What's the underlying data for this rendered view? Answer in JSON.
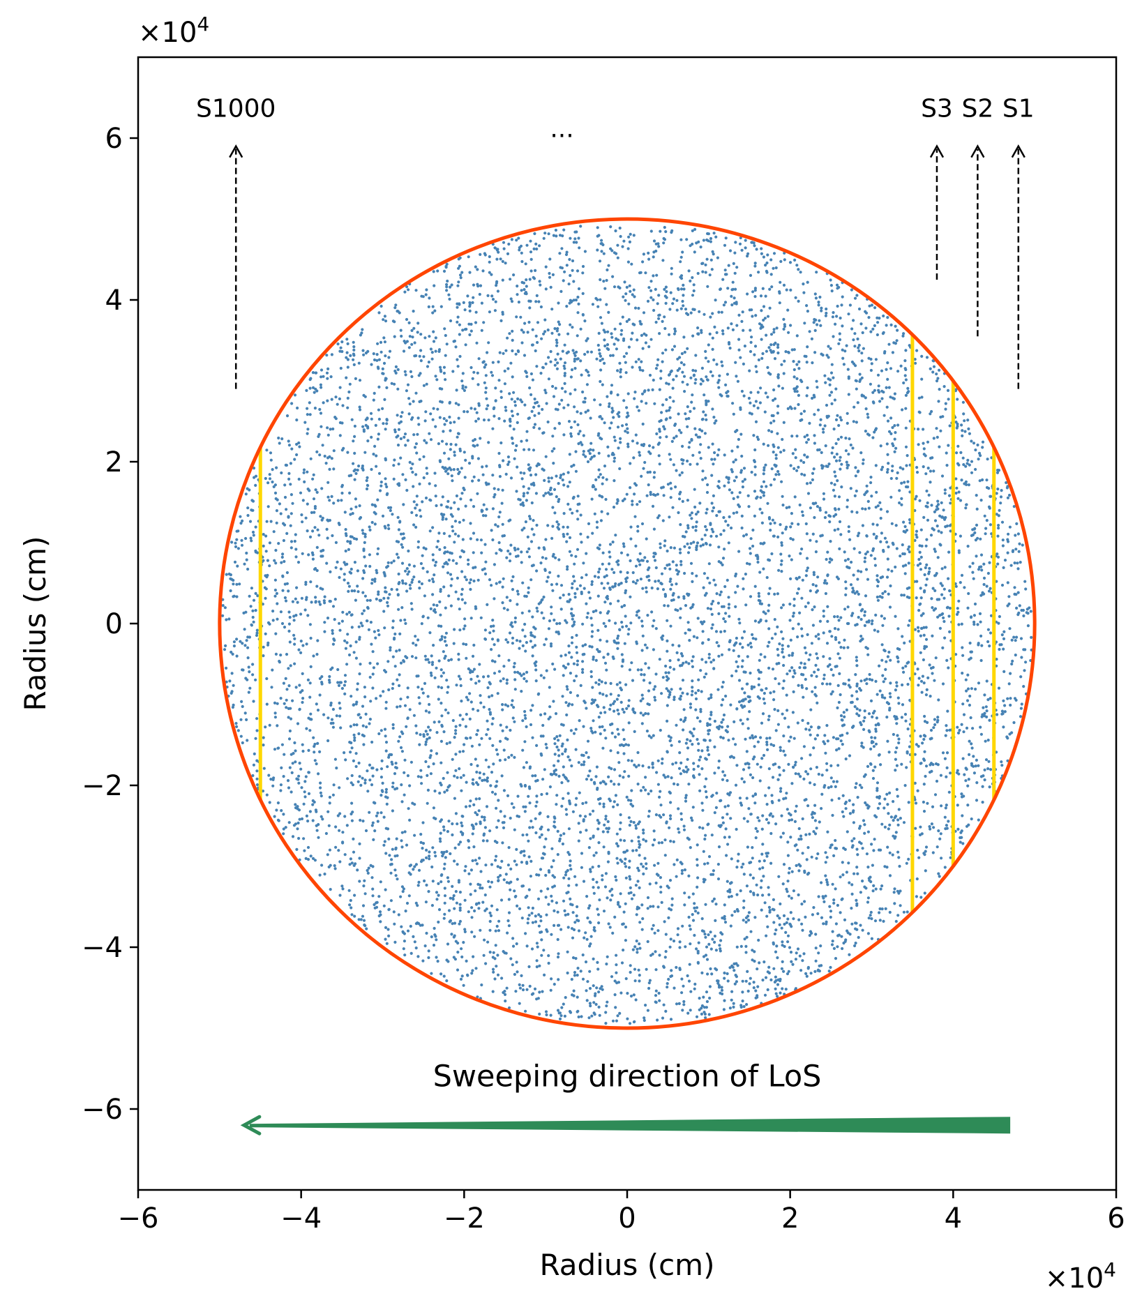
{
  "chart_data": {
    "type": "scatter",
    "title": "",
    "xlabel": "Radius (cm)",
    "ylabel": "Radius (cm)",
    "xlim": [
      -60000,
      60000
    ],
    "ylim": [
      -70000,
      70000
    ],
    "x_ticks": [
      -6,
      -4,
      -2,
      0,
      2,
      4,
      6
    ],
    "y_ticks": [
      6,
      4,
      2,
      0,
      -2,
      -4,
      -6
    ],
    "x_tick_labels": [
      "−6",
      "−4",
      "−2",
      "0",
      "2",
      "4",
      "6"
    ],
    "y_tick_labels": [
      "6",
      "4",
      "2",
      "0",
      "−2",
      "−4",
      "−6"
    ],
    "x_offset_label": "×10",
    "y_offset_label": "×10",
    "offset_exponent": "4",
    "grid": false,
    "circle": {
      "center": [
        0,
        0
      ],
      "radius": 50000,
      "color": "#ff4500"
    },
    "scatter": {
      "color": "#4682b4",
      "description_points": 26000,
      "distribution": "uniform-in-disk"
    },
    "sightlines": [
      {
        "x": -45000,
        "color": "#ffd700"
      },
      {
        "x": 35000,
        "color": "#ffd700"
      },
      {
        "x": 40000,
        "color": "#ffd700"
      },
      {
        "x": 45000,
        "color": "#ffd700"
      }
    ],
    "upward_arrows": [
      {
        "label": "S1000",
        "x": -48000,
        "y_start": 29000,
        "y_end": 59000
      },
      {
        "label": "S3",
        "x": 38000,
        "y_start": 42500,
        "y_end": 59000
      },
      {
        "label": "S2",
        "x": 43000,
        "y_start": 35500,
        "y_end": 59000
      },
      {
        "label": "S1",
        "x": 48000,
        "y_start": 29000,
        "y_end": 59000
      }
    ],
    "ellipsis_label": {
      "text": "...",
      "x": -8000,
      "y": 61000
    },
    "sweep_arrow": {
      "label": "Sweeping direction of LoS",
      "label_x": 0,
      "label_y": -56000,
      "x_start": 47000,
      "x_end": -47000,
      "y": -62000,
      "color": "#2e8b57"
    }
  }
}
